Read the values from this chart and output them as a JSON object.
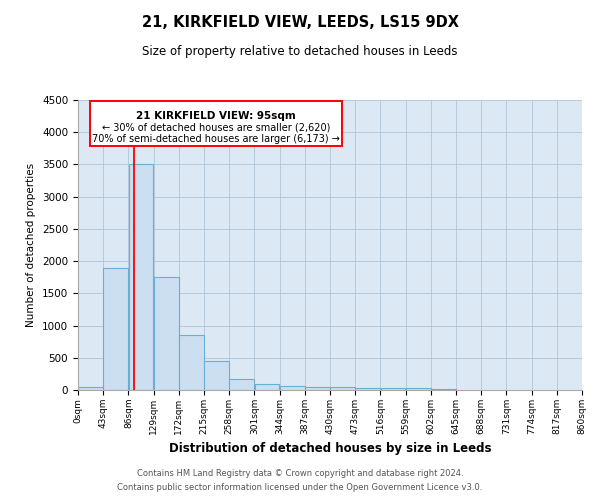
{
  "title1": "21, KIRKFIELD VIEW, LEEDS, LS15 9DX",
  "title2": "Size of property relative to detached houses in Leeds",
  "xlabel": "Distribution of detached houses by size in Leeds",
  "ylabel": "Number of detached properties",
  "bin_edges": [
    0,
    43,
    86,
    129,
    172,
    215,
    258,
    301,
    344,
    387,
    430,
    473,
    516,
    559,
    602,
    645,
    688,
    731,
    774,
    817,
    860
  ],
  "bar_heights": [
    50,
    1900,
    3500,
    1750,
    850,
    450,
    175,
    100,
    60,
    50,
    40,
    35,
    30,
    25,
    20,
    0,
    0,
    0,
    0,
    0
  ],
  "tick_labels": [
    "0sqm",
    "43sqm",
    "86sqm",
    "129sqm",
    "172sqm",
    "215sqm",
    "258sqm",
    "301sqm",
    "344sqm",
    "387sqm",
    "430sqm",
    "473sqm",
    "516sqm",
    "559sqm",
    "602sqm",
    "645sqm",
    "688sqm",
    "731sqm",
    "774sqm",
    "817sqm",
    "860sqm"
  ],
  "bar_color": "#ccdff0",
  "bar_edge_color": "#6aaed6",
  "red_line_x": 95,
  "ylim": [
    0,
    4500
  ],
  "yticks": [
    0,
    500,
    1000,
    1500,
    2000,
    2500,
    3000,
    3500,
    4000,
    4500
  ],
  "bg_color": "#ffffff",
  "plot_bg_color": "#dce9f5",
  "grid_color": "#b0c4d8",
  "ann_line1": "21 KIRKFIELD VIEW: 95sqm",
  "ann_line2": "← 30% of detached houses are smaller (2,620)",
  "ann_line3": "70% of semi-detached houses are larger (6,173) →",
  "footer1": "Contains HM Land Registry data © Crown copyright and database right 2024.",
  "footer2": "Contains public sector information licensed under the Open Government Licence v3.0."
}
